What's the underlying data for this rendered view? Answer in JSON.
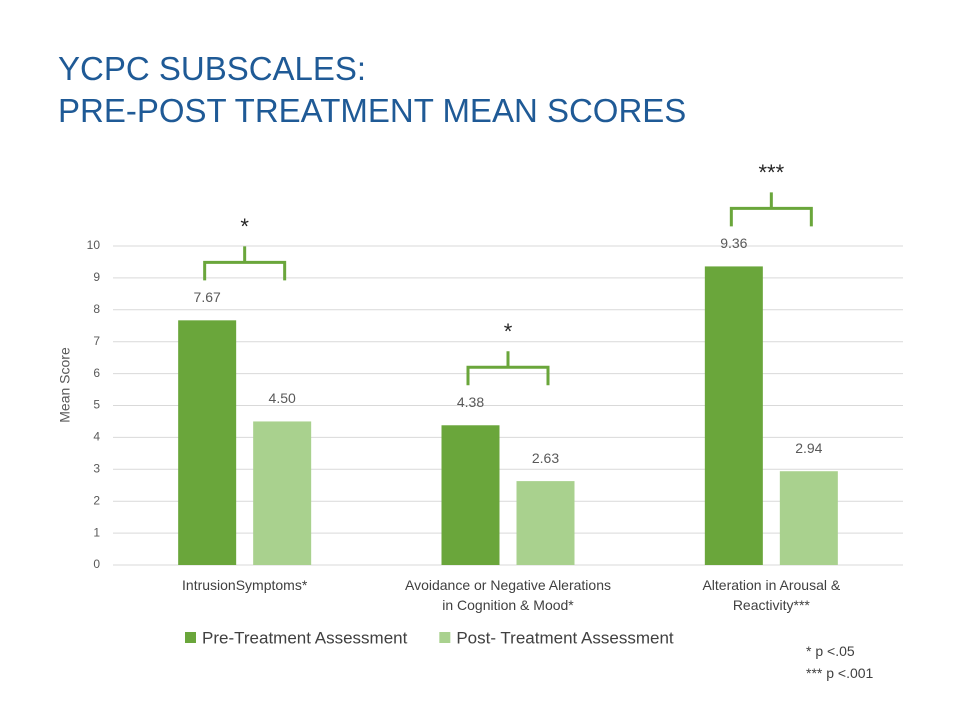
{
  "chart_data": {
    "type": "bar",
    "title": "YCPC SUBSCALES:\nPRE-POST TREATMENT MEAN SCORES",
    "y_label": "Mean Score",
    "categories": [
      "IntrusionSymptoms*",
      "Avoidance or Negative Alerations\nin Cognition & Mood*",
      "Alteration in Arousal &\nReactivity***"
    ],
    "series": [
      {
        "name": "Pre-Treatment Assessment",
        "color": "#6aa63b",
        "values": [
          7.67,
          4.38,
          9.36
        ],
        "value_labels": [
          "7.67",
          "4.38",
          "9.36"
        ]
      },
      {
        "name": "Post- Treatment Assessment",
        "color": "#a9d18e",
        "values": [
          4.5,
          2.63,
          2.94
        ],
        "value_labels": [
          "4.50",
          "2.63",
          "2.94"
        ]
      }
    ],
    "significance": [
      "*",
      "*",
      "***"
    ],
    "footnotes": [
      "* p <.05",
      "*** p <.001"
    ],
    "ylim": [
      0,
      10
    ],
    "yticks": [
      0,
      1,
      2,
      3,
      4,
      5,
      6,
      7,
      8,
      9,
      10
    ],
    "grid": true,
    "legend": "bottom"
  }
}
